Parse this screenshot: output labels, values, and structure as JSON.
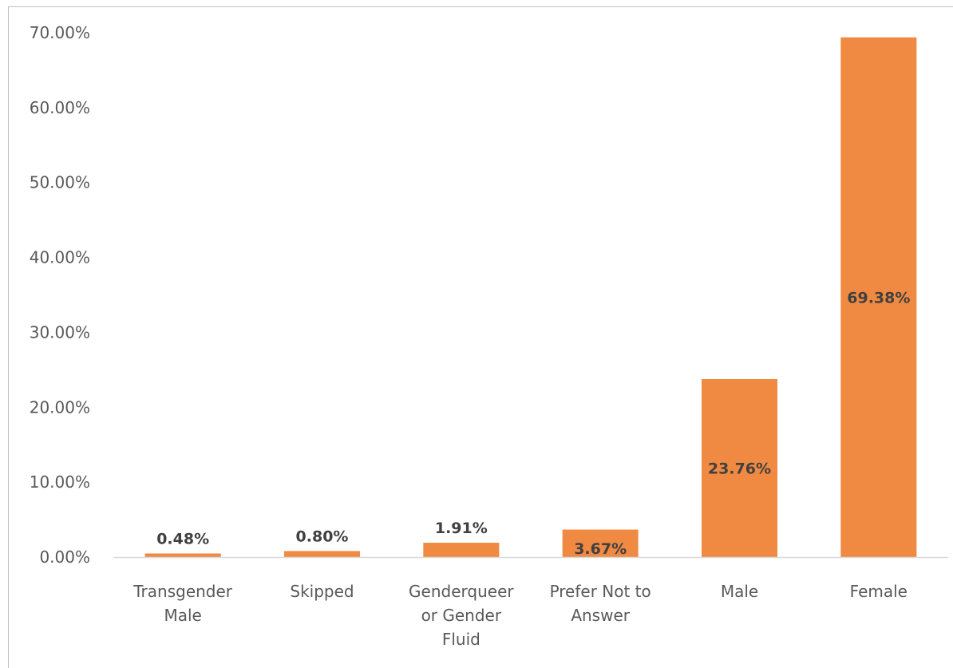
{
  "chart_data": {
    "type": "bar",
    "title": "",
    "xlabel": "",
    "ylabel": "",
    "categories": [
      [
        "Transgender",
        "Male"
      ],
      [
        "Skipped"
      ],
      [
        "Genderqueer",
        "or Gender",
        "Fluid"
      ],
      [
        "Prefer Not to",
        "Answer"
      ],
      [
        "Male"
      ],
      [
        "Female"
      ]
    ],
    "values": [
      0.48,
      0.8,
      1.91,
      3.67,
      23.76,
      69.38
    ],
    "data_labels": [
      "0.48%",
      "0.80%",
      "1.91%",
      "3.67%",
      "23.76%",
      "69.38%"
    ],
    "ylim": [
      0,
      70
    ],
    "yticks": [
      0,
      10,
      20,
      30,
      40,
      50,
      60,
      70
    ],
    "ytick_labels": [
      "0.00%",
      "10.00%",
      "20.00%",
      "30.00%",
      "40.00%",
      "50.00%",
      "60.00%",
      "70.00%"
    ],
    "bar_color": "#F08A42",
    "grid": false,
    "legend": "none"
  }
}
